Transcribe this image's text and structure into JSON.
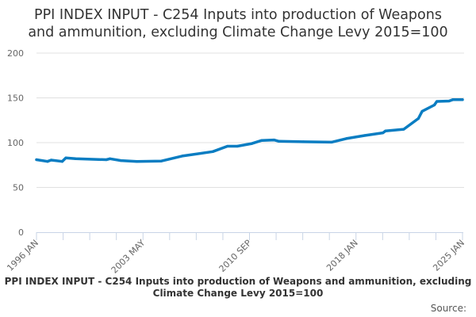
{
  "title_line1": "PPI INDEX INPUT - C254 Inputs into production of Weapons",
  "title_line2": "and ammunition, excluding Climate Change Levy 2015=100",
  "footer": "PPI INDEX INPUT - C254 Inputs into production of Weapons and ammunition, excluding Climate Change Levy 2015=100",
  "source_label": "Source:",
  "chart_data": {
    "type": "line",
    "title": "PPI INDEX INPUT - C254 Inputs into production of Weapons and ammunition, excluding Climate Change Levy 2015=100",
    "xlabel": "",
    "ylabel": "",
    "ylim": [
      0,
      200
    ],
    "yticks": [
      0,
      50,
      100,
      150,
      200
    ],
    "xlim": [
      "1996 JAN",
      "2025 JAN"
    ],
    "xticks": [
      "1996 JAN",
      "2003 MAY",
      "2010 SEP",
      "2018 JAN",
      "2025 JAN"
    ],
    "grid": true,
    "legend": "none",
    "color": "#0a7dc2",
    "series": [
      {
        "x": [
          "1996 JAN",
          "1996 OCT",
          "1997 JAN",
          "1997 OCT",
          "1998 JAN",
          "1998 SEP",
          "2000 OCT",
          "2001 JAN",
          "2001 OCT",
          "2002 NOV",
          "2004 JUL",
          "2005 DEC",
          "2008 JAN",
          "2009 JAN",
          "2009 SEP",
          "2010 SEP",
          "2011 MAY",
          "2012 MAR",
          "2012 JUL",
          "2014 MAR",
          "2016 FEB",
          "2017 FEB",
          "2018 MAY",
          "2019 AUG",
          "2019 OCT",
          "2021 JAN",
          "2022 JAN",
          "2022 APR",
          "2023 FEB",
          "2023 APR",
          "2024 FEB",
          "2024 MAY",
          "2025 JAN"
        ],
        "y": [
          81,
          79,
          80.5,
          79,
          83,
          82,
          81,
          82,
          80,
          79,
          79.5,
          85,
          90,
          96,
          96,
          99,
          102.5,
          103,
          101.5,
          101,
          100.5,
          104.5,
          108,
          111,
          113,
          115,
          127,
          135,
          142,
          146,
          146.5,
          148,
          148
        ]
      }
    ]
  }
}
